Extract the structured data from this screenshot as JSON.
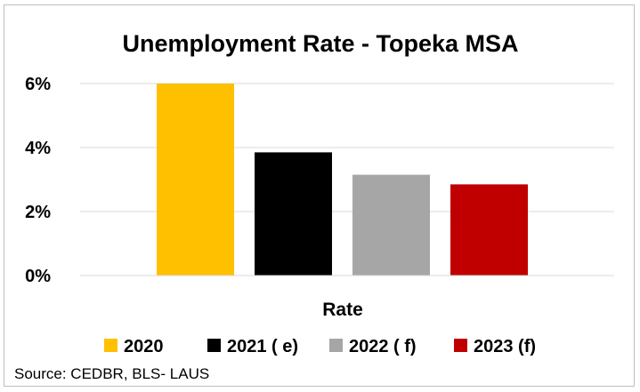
{
  "chart_data": {
    "type": "bar",
    "title": "Unemployment Rate - Topeka MSA",
    "xlabel": "Rate",
    "ylabel": "",
    "categories": [
      "Rate"
    ],
    "series": [
      {
        "name": "2020",
        "values": [
          6.0
        ],
        "color": "#FFC000"
      },
      {
        "name": "2021 ( e)",
        "values": [
          3.85
        ],
        "color": "#000000"
      },
      {
        "name": "2022 ( f)",
        "values": [
          3.15
        ],
        "color": "#A6A6A6"
      },
      {
        "name": "2023 (f)",
        "values": [
          2.85
        ],
        "color": "#C00000"
      }
    ],
    "ylim": [
      0,
      6
    ],
    "yticks": [
      {
        "value": 0,
        "label": "0%"
      },
      {
        "value": 2,
        "label": "2%"
      },
      {
        "value": 4,
        "label": "4%"
      },
      {
        "value": 6,
        "label": "6%"
      }
    ],
    "grid": true,
    "legend_position": "bottom"
  },
  "source_note": "Source: CEDBR, BLS- LAUS"
}
